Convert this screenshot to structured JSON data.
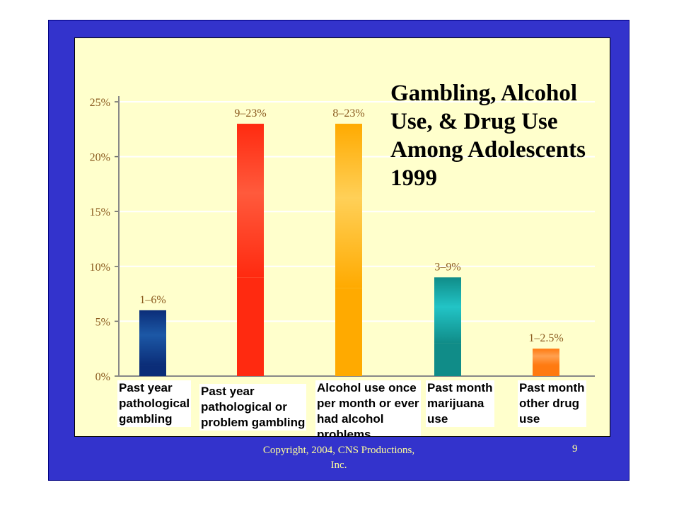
{
  "slide": {
    "copyright": "Copyright, 2004, CNS Productions, Inc.",
    "page_number": "9"
  },
  "chart_data": {
    "type": "bar",
    "title": "Gambling, Alcohol\nUse, & Drug Use\nAmong Adolescents\n1999",
    "xlabel": "",
    "ylabel": "",
    "ylim": [
      0,
      25
    ],
    "yticks": [
      "0%",
      "5%",
      "10%",
      "15%",
      "20%",
      "25%"
    ],
    "grid": true,
    "categories": [
      "Past year\npathological\ngambling",
      "Past year\npathological or\nproblem gambling",
      "Alcohol use once\nper month or ever\nhad alcohol\nproblems",
      "Past month\nmarijuana\nuse",
      "Past month\nother drug\nuse"
    ],
    "ranges": [
      {
        "low": 1,
        "high": 6,
        "label": "1–6%",
        "color_low": "#0b2d78",
        "color_high": "#1c58a6"
      },
      {
        "low": 9,
        "high": 23,
        "label": "9–23%",
        "color_low": "#ff2a10",
        "color_high": "#ff5a3c"
      },
      {
        "low": 8,
        "high": 23,
        "label": "8–23%",
        "color_low": "#ffaa00",
        "color_high": "#ffd058"
      },
      {
        "low": 3,
        "high": 9,
        "label": "3–9%",
        "color_low": "#108c88",
        "color_high": "#22c4c6"
      },
      {
        "low": 1,
        "high": 2.5,
        "label": "1–2.5%",
        "color_low": "#ff7a10",
        "color_high": "#ffa050"
      }
    ]
  }
}
